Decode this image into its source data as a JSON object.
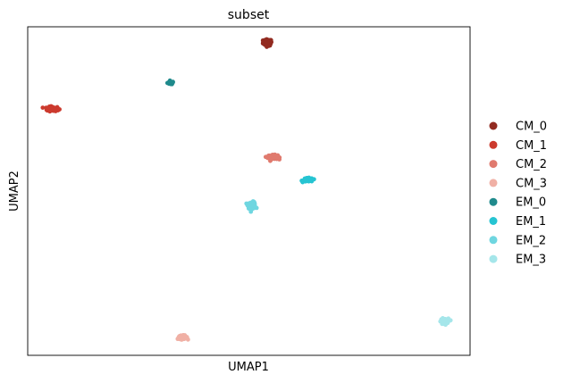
{
  "chart_data": {
    "type": "scatter",
    "title": "subset",
    "xlabel": "UMAP1",
    "ylabel": "UMAP2",
    "xlim": [
      0,
      100
    ],
    "ylim": [
      0,
      100
    ],
    "grid": false,
    "ticks": false,
    "legend_position": "right",
    "series": [
      {
        "name": "CM_0",
        "color": "#922b21",
        "centroid": [
          54.2,
          95.2
        ],
        "spread": [
          0.9,
          0.9
        ],
        "points": 70
      },
      {
        "name": "CM_1",
        "color": "#cc3a2e",
        "centroid": [
          5.7,
          75.0
        ],
        "spread": [
          1.2,
          0.6
        ],
        "points": 120
      },
      {
        "name": "CM_2",
        "color": "#e07a6e",
        "centroid": [
          55.4,
          60.3
        ],
        "spread": [
          1.0,
          0.6
        ],
        "points": 90
      },
      {
        "name": "CM_3",
        "color": "#f0b0a5",
        "centroid": [
          35.0,
          5.5
        ],
        "spread": [
          1.0,
          0.5
        ],
        "points": 70
      },
      {
        "name": "EM_0",
        "color": "#1f8a8c",
        "centroid": [
          32.3,
          82.9
        ],
        "spread": [
          0.6,
          0.4
        ],
        "points": 45
      },
      {
        "name": "EM_1",
        "color": "#26c4d2",
        "centroid": [
          63.4,
          53.4
        ],
        "spread": [
          1.0,
          0.5
        ],
        "points": 70
      },
      {
        "name": "EM_2",
        "color": "#6fd6e0",
        "centroid": [
          50.7,
          45.7
        ],
        "spread": [
          0.8,
          0.9
        ],
        "points": 70
      },
      {
        "name": "EM_3",
        "color": "#a5e6ea",
        "centroid": [
          94.2,
          10.3
        ],
        "spread": [
          0.8,
          0.8
        ],
        "points": 60
      }
    ]
  }
}
